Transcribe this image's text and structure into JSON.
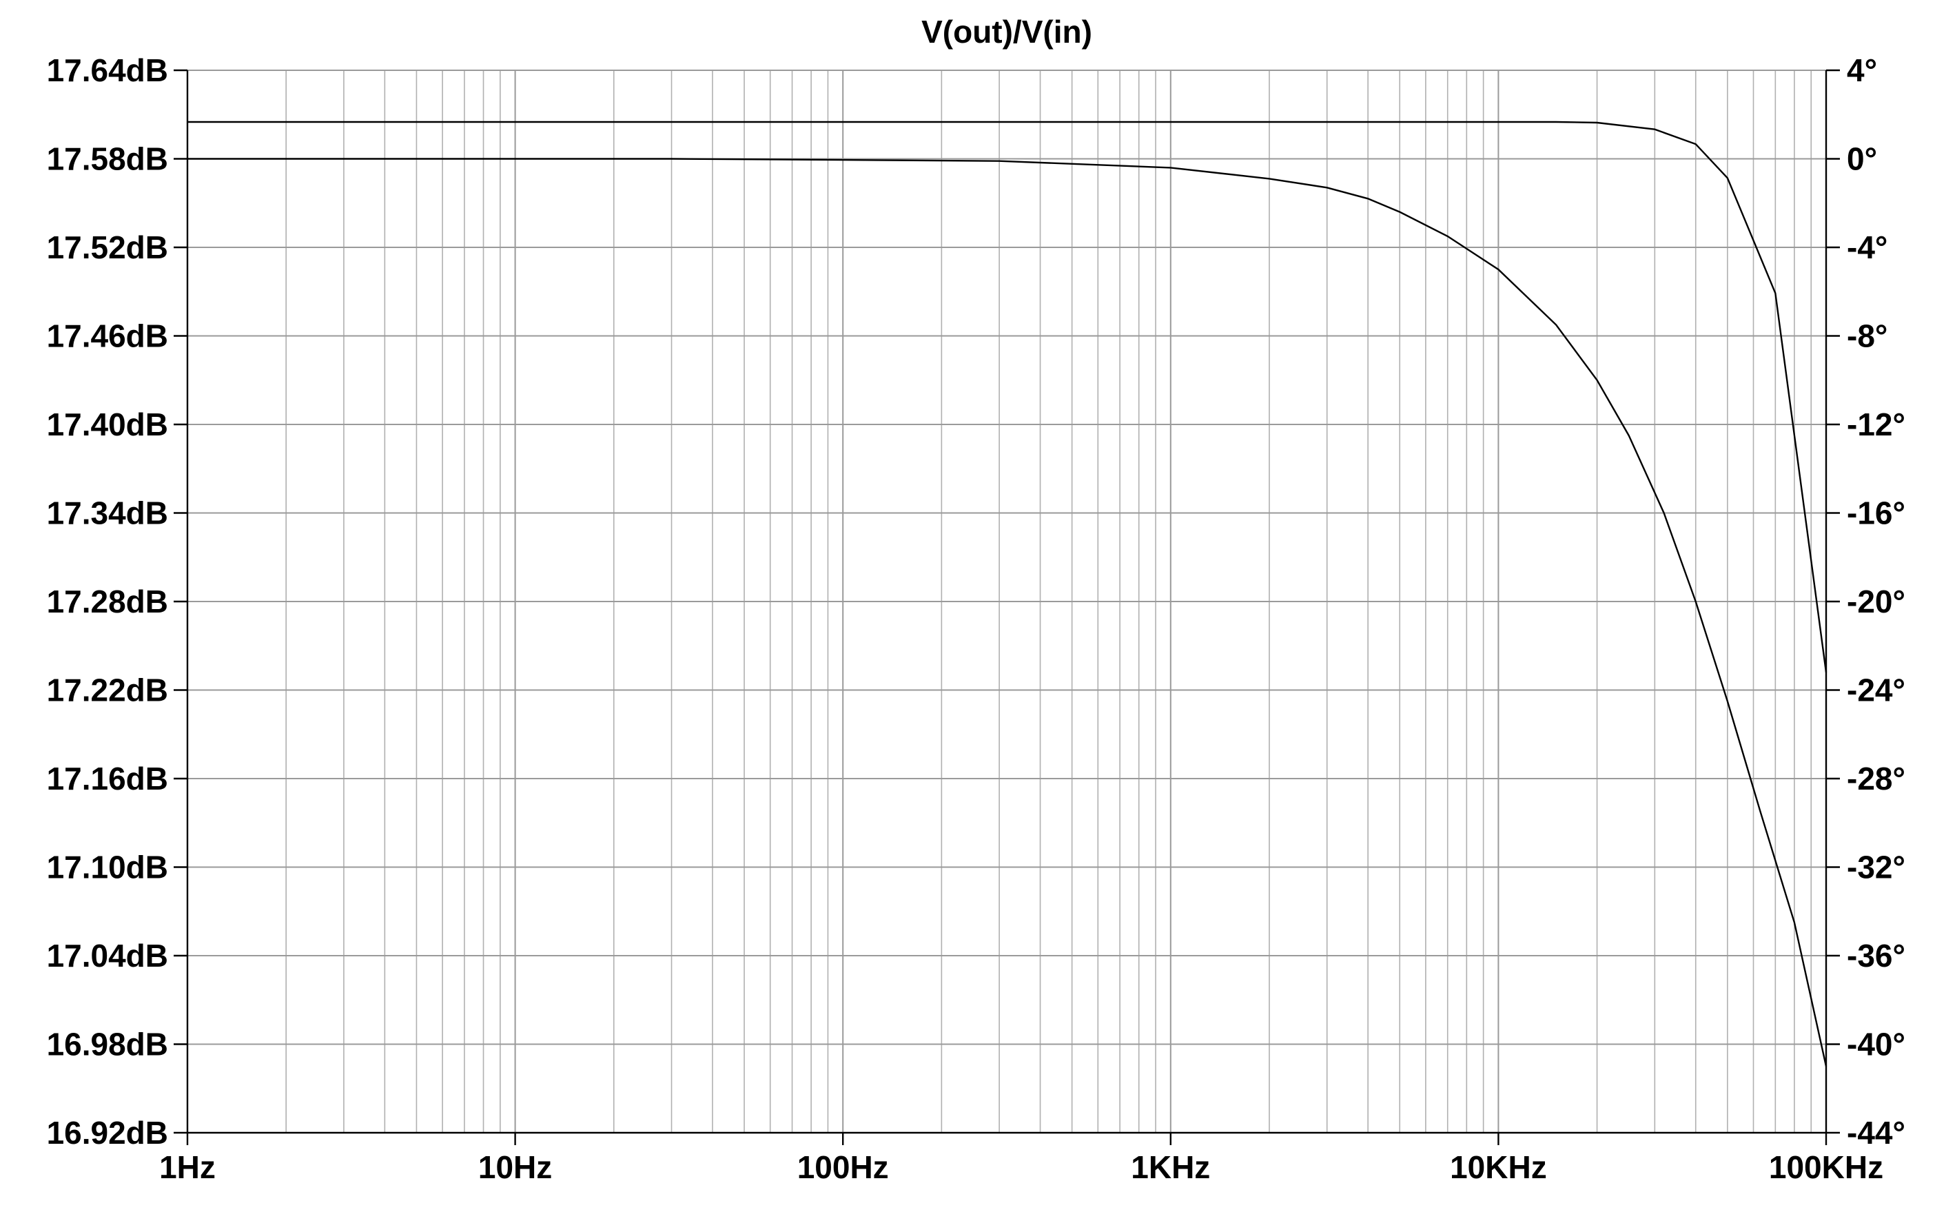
{
  "chart_data": {
    "type": "line",
    "title": "V(out)/V(in)",
    "x_scale": "log",
    "xlim": [
      1,
      100000
    ],
    "x_ticks": [
      1,
      10,
      100,
      1000,
      10000,
      100000
    ],
    "x_tick_labels": [
      "1Hz",
      "10Hz",
      "100Hz",
      "1KHz",
      "10KHz",
      "100KHz"
    ],
    "y_left": {
      "lim": [
        16.92,
        17.64
      ],
      "ticks": [
        17.64,
        17.58,
        17.52,
        17.46,
        17.4,
        17.34,
        17.28,
        17.22,
        17.16,
        17.1,
        17.04,
        16.98,
        16.92
      ],
      "tick_labels": [
        "17.64dB",
        "17.58dB",
        "17.52dB",
        "17.46dB",
        "17.40dB",
        "17.34dB",
        "17.28dB",
        "17.22dB",
        "17.16dB",
        "17.10dB",
        "17.04dB",
        "16.98dB",
        "16.92dB"
      ]
    },
    "y_right": {
      "lim": [
        -44,
        4
      ],
      "ticks": [
        4,
        0,
        -4,
        -8,
        -12,
        -16,
        -20,
        -24,
        -28,
        -32,
        -36,
        -40,
        -44
      ],
      "tick_labels": [
        "4°",
        "0°",
        "-4°",
        "-8°",
        "-12°",
        "-16°",
        "-20°",
        "-24°",
        "-28°",
        "-32°",
        "-36°",
        "-40°",
        "-44°"
      ]
    },
    "grid": true,
    "series": [
      {
        "axis": "left",
        "x": [
          1,
          10,
          30,
          100,
          300,
          1000,
          2000,
          3000,
          5000,
          7000,
          10000,
          15000,
          20000,
          30000,
          40000,
          50000,
          70000,
          100000
        ],
        "y": [
          17.605,
          17.605,
          17.605,
          17.605,
          17.605,
          17.605,
          17.605,
          17.605,
          17.605,
          17.605,
          17.605,
          17.605,
          17.6045,
          17.6,
          17.59,
          17.567,
          17.489,
          17.232
        ]
      },
      {
        "axis": "right",
        "x": [
          1,
          10,
          30,
          100,
          300,
          1000,
          2000,
          3000,
          4000,
          5000,
          7000,
          10000,
          15000,
          20000,
          25000,
          32000,
          40000,
          50000,
          63000,
          80000,
          100000
        ],
        "y": [
          0,
          0,
          0,
          -0.05,
          -0.1,
          -0.4,
          -0.9,
          -1.3,
          -1.8,
          -2.4,
          -3.5,
          -5.0,
          -7.5,
          -10.0,
          -12.5,
          -16.0,
          -20.0,
          -24.5,
          -29.5,
          -34.5,
          -41.0
        ]
      }
    ]
  }
}
